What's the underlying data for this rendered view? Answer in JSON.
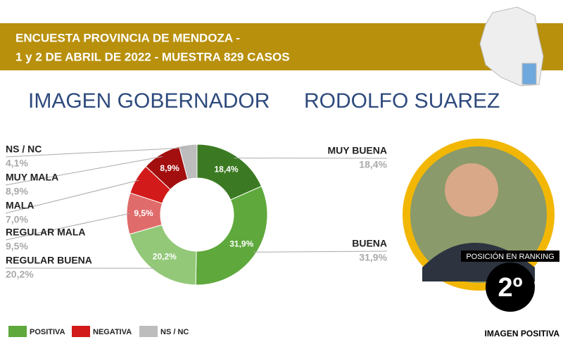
{
  "header": {
    "line1": "ENCUESTA PROVINCIA DE MENDOZA -",
    "line2": "1 y 2  DE ABRIL DE 2022 - MUESTRA 829 CASOS"
  },
  "chart_data": {
    "type": "donut",
    "title": "IMAGEN GOBERNADOR",
    "subtitle": "RODOLFO SUAREZ",
    "categories": [
      "MUY BUENA",
      "BUENA",
      "REGULAR BUENA",
      "REGULAR MALA",
      "MALA",
      "MUY MALA",
      "NS / NC"
    ],
    "values": [
      18.4,
      31.9,
      20.2,
      9.5,
      7.0,
      8.9,
      4.1
    ],
    "value_labels": [
      "18,4%",
      "31,9%",
      "20,2%",
      "9,5%",
      "7,0%",
      "8,9%",
      "4,1%"
    ],
    "colors": [
      "#3b7a22",
      "#5ea83c",
      "#92c878",
      "#e06b6b",
      "#d21a1a",
      "#a30f0f",
      "#bdbdbd"
    ],
    "legend": [
      {
        "name": "POSITIVA",
        "color": "#5ea83c"
      },
      {
        "name": "NEGATIVA",
        "color": "#d21a1a"
      },
      {
        "name": "NS / NC",
        "color": "#bdbdbd"
      }
    ]
  },
  "ranking": {
    "label": "POSICIÓN EN RANKING",
    "position": "2º",
    "caption": "IMAGEN POSITIVA"
  }
}
